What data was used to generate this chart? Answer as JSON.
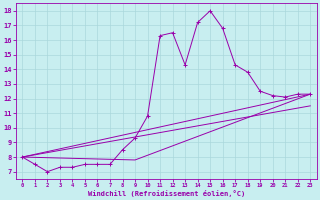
{
  "xlabel": "Windchill (Refroidissement éolien,°C)",
  "xlim": [
    -0.5,
    23.5
  ],
  "ylim": [
    6.5,
    18.5
  ],
  "yticks": [
    7,
    8,
    9,
    10,
    11,
    12,
    13,
    14,
    15,
    16,
    17,
    18
  ],
  "xticks": [
    0,
    1,
    2,
    3,
    4,
    5,
    6,
    7,
    8,
    9,
    10,
    11,
    12,
    13,
    14,
    15,
    16,
    17,
    18,
    19,
    20,
    21,
    22,
    23
  ],
  "bg_color": "#c8eef0",
  "line_color": "#9900aa",
  "grid_color": "#aad8dc",
  "main_line_x": [
    0,
    1,
    2,
    3,
    4,
    5,
    6,
    7,
    8,
    9,
    10,
    11,
    12,
    13,
    14,
    15,
    16,
    17,
    18,
    19,
    20,
    21,
    22,
    23
  ],
  "main_line_y": [
    8.0,
    7.5,
    7.0,
    7.3,
    7.3,
    7.5,
    7.5,
    7.5,
    8.5,
    9.3,
    10.8,
    16.3,
    16.5,
    14.3,
    17.2,
    18.0,
    16.8,
    14.3,
    13.8,
    12.5,
    12.2,
    12.1,
    12.3,
    12.3
  ],
  "straight_lines": [
    {
      "x": [
        0,
        23
      ],
      "y": [
        8.0,
        12.3
      ]
    },
    {
      "x": [
        0,
        23
      ],
      "y": [
        8.0,
        11.5
      ]
    },
    {
      "x": [
        0,
        9,
        23
      ],
      "y": [
        8.0,
        7.8,
        12.3
      ]
    }
  ]
}
